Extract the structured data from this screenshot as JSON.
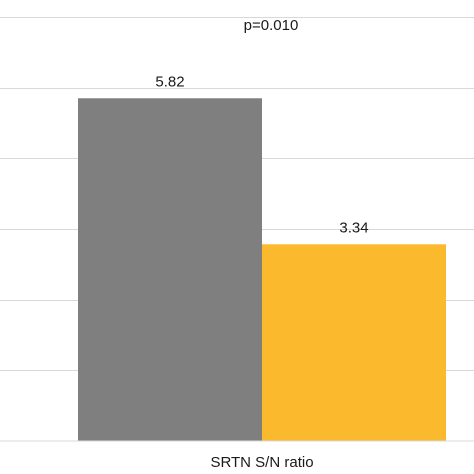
{
  "chart_data": {
    "type": "bar",
    "annotation": "p=0.010",
    "xlabel": "SRTN S/N ratio",
    "ylabel": "",
    "ylim": [
      0,
      7.2
    ],
    "grid": true,
    "gridlines": [
      1.2,
      2.4,
      3.6,
      4.8,
      6.0,
      7.2
    ],
    "categories": [
      "SRTN S/N ratio"
    ],
    "series": [
      {
        "values": [
          5.82
        ],
        "color": "#7f7f7f"
      },
      {
        "values": [
          3.34
        ],
        "color": "#fbb92e"
      }
    ],
    "data_labels": [
      "5.82",
      "3.34"
    ]
  }
}
